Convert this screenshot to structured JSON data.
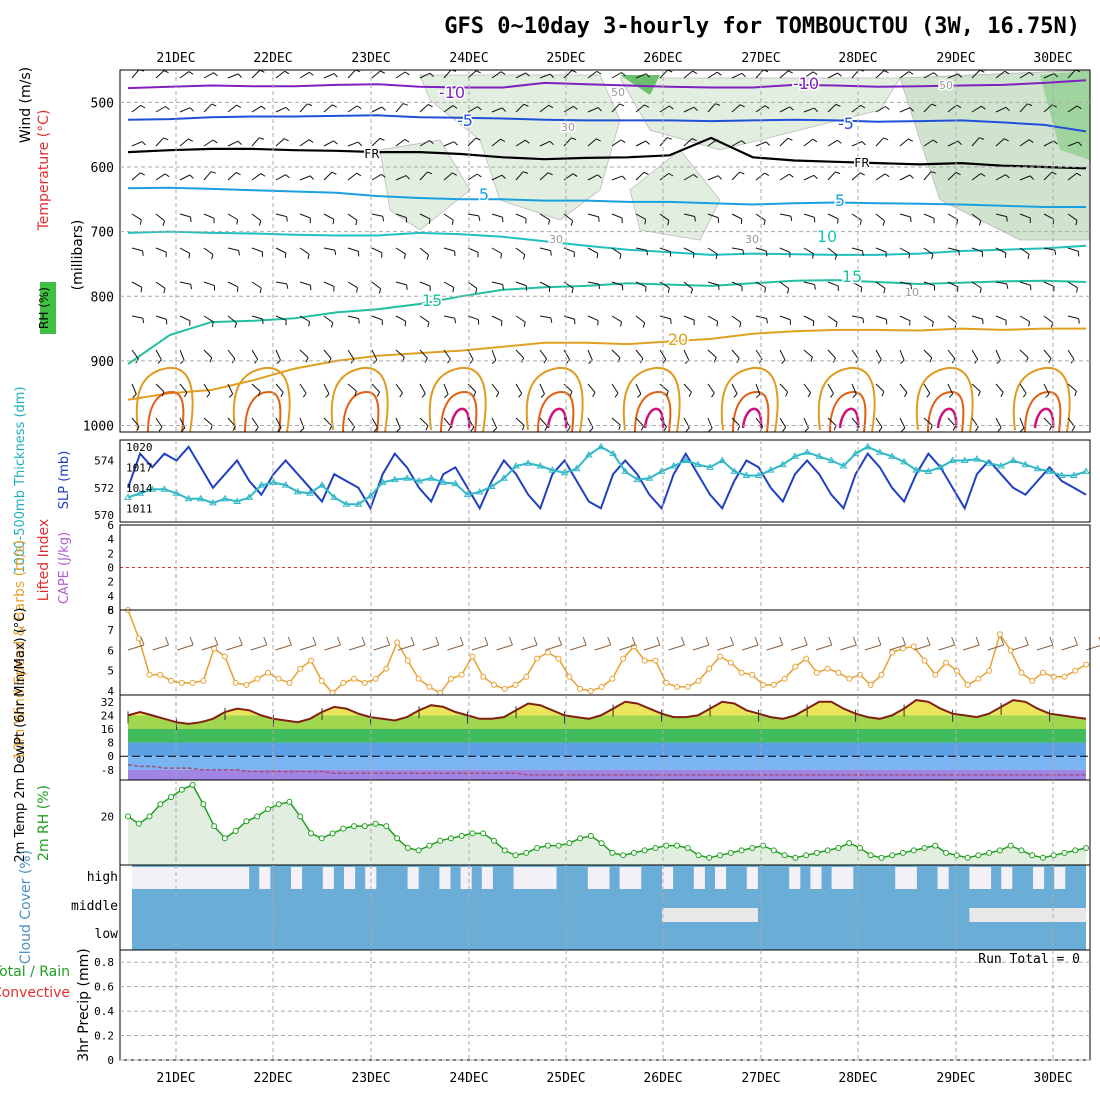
{
  "title": "GFS 0~10day 3-hourly for TOMBOUCTOU (3W, 16.75N)",
  "dates": [
    "21DEC",
    "22DEC",
    "23DEC",
    "24DEC",
    "25DEC",
    "26DEC",
    "27DEC",
    "28DEC",
    "29DEC",
    "30DEC"
  ],
  "colors": {
    "orange": "#e8a030",
    "cyan": "#30b8c8",
    "green": "#20a020",
    "blue": "#2040c0",
    "red": "#e03030",
    "purple": "#b060d0",
    "rh_green": "#40c040",
    "cloud": "#6aaed8",
    "grid": "#a0a0a0"
  },
  "chart_data": [
    {
      "type": "contour",
      "name": "upper-air",
      "labels": {
        "rh": "RH (%)",
        "temperature": "Temperature (°C)",
        "wind": "Wind (m/s)",
        "pressure": "(millibars)"
      },
      "yaxis_ticks": [
        "500",
        "600",
        "700",
        "800",
        "900",
        "1000"
      ],
      "ylim": [
        450,
        1010
      ],
      "contour_labels": [
        "-10",
        "-10",
        "-5",
        "-5",
        "FR",
        "FR",
        "5",
        "5",
        "10",
        "15",
        "15",
        "20",
        "30",
        "30",
        "30",
        "50",
        "50",
        "10"
      ],
      "isotherms": [
        {
          "label": "-10",
          "color": "#8020c0",
          "p": [
            478,
            476,
            474,
            475,
            475,
            473,
            472,
            476,
            477,
            477,
            470,
            472,
            474,
            476,
            477,
            477,
            473,
            474,
            476,
            475,
            474,
            473,
            470,
            466
          ]
        },
        {
          "label": "-5",
          "color": "#2050d8",
          "p": [
            527,
            526,
            523,
            522,
            522,
            521,
            520,
            523,
            524,
            525,
            527,
            528,
            528,
            528,
            529,
            528,
            527,
            528,
            530,
            529,
            528,
            531,
            535,
            545
          ]
        },
        {
          "label": "FR",
          "color": "#000000",
          "p": [
            577,
            574,
            572,
            572,
            574,
            575,
            577,
            577,
            580,
            585,
            588,
            586,
            585,
            582,
            555,
            585,
            590,
            592,
            594,
            596,
            594,
            598,
            600,
            602
          ]
        },
        {
          "label": "5",
          "color": "#1aa0e0",
          "p": [
            633,
            632,
            634,
            636,
            638,
            640,
            645,
            648,
            650,
            650,
            652,
            652,
            654,
            654,
            656,
            658,
            656,
            655,
            656,
            657,
            658,
            660,
            662,
            662
          ]
        },
        {
          "label": "10",
          "color": "#20c0c0",
          "p": [
            702,
            700,
            702,
            703,
            705,
            706,
            706,
            702,
            704,
            708,
            715,
            722,
            728,
            732,
            736,
            734,
            735,
            736,
            736,
            734,
            730,
            728,
            726,
            722
          ]
        },
        {
          "label": "15",
          "color": "#20c0a0",
          "p": [
            905,
            860,
            840,
            838,
            834,
            825,
            820,
            812,
            800,
            790,
            786,
            784,
            780,
            782,
            784,
            780,
            776,
            775,
            778,
            781,
            779,
            777,
            776,
            778
          ]
        },
        {
          "label": "20",
          "color": "#e0a020",
          "p": [
            960,
            950,
            945,
            930,
            912,
            900,
            892,
            888,
            884,
            878,
            872,
            872,
            874,
            870,
            866,
            858,
            854,
            852,
            852,
            853,
            850,
            852,
            850,
            850
          ]
        }
      ]
    },
    {
      "type": "line",
      "name": "slp-thickness",
      "ylabel_left": "1000-500mb Thickness (dm)",
      "ylabel_right": "SLP (mb)",
      "left_ticks": [
        "574",
        "572",
        "570"
      ],
      "right_ticks": [
        "1020",
        "1017",
        "1014",
        "1011"
      ],
      "series": [
        {
          "name": "SLP (mb)",
          "color": "#2040c0",
          "axis": "right",
          "ylim": [
            1009,
            1021
          ],
          "values": [
            1014,
            1019,
            1017,
            1019,
            1018,
            1020,
            1017,
            1014,
            1016,
            1018,
            1015,
            1013,
            1016,
            1018,
            1016,
            1014,
            1012,
            1016,
            1015,
            1014,
            1011,
            1016,
            1019,
            1017,
            1014,
            1012,
            1016,
            1017,
            1014,
            1011,
            1015,
            1018,
            1016,
            1013,
            1011,
            1016,
            1018,
            1015,
            1012,
            1011,
            1016,
            1018,
            1016,
            1013,
            1011,
            1016,
            1019,
            1016,
            1013,
            1011,
            1015,
            1018,
            1017,
            1014,
            1012,
            1016,
            1018,
            1016,
            1013,
            1011,
            1016,
            1019,
            1017,
            1014,
            1012,
            1016,
            1019,
            1017,
            1014,
            1011,
            1016,
            1018,
            1016,
            1014,
            1013,
            1015,
            1017,
            1015,
            1014,
            1013
          ]
        },
        {
          "name": "Thickness (dm)",
          "color": "#30b8c8",
          "axis": "left",
          "ylim": [
            569.5,
            575.5
          ],
          "values": [
            571.3,
            571.6,
            571.9,
            571.9,
            571.6,
            571.2,
            571.2,
            570.9,
            571.2,
            571.0,
            571.3,
            572.2,
            572.4,
            572.2,
            571.7,
            571.6,
            572.2,
            571.3,
            570.8,
            570.8,
            571.4,
            572.4,
            572.6,
            572.7,
            572.5,
            572.7,
            572.4,
            572.3,
            571.5,
            571.7,
            572.1,
            572.7,
            573.6,
            573.8,
            573.6,
            573.3,
            573.1,
            573.4,
            574.4,
            575.0,
            574.5,
            573.2,
            572.6,
            572.7,
            573.2,
            573.6,
            574.0,
            573.7,
            573.5,
            574.0,
            573.2,
            572.9,
            572.9,
            573.3,
            573.7,
            574.3,
            574.6,
            574.3,
            574.0,
            573.6,
            574.5,
            575.0,
            574.6,
            574.3,
            573.9,
            573.3,
            573.2,
            573.5,
            574.0,
            574.0,
            574.1,
            573.8,
            573.6,
            574.0,
            573.7,
            573.4,
            573.2,
            572.9,
            572.9,
            573.2
          ]
        }
      ]
    },
    {
      "type": "line",
      "name": "lifted-index-cape",
      "ylabel_left": "Lifted Index",
      "ylabel_right": "CAPE (J/kg)",
      "yticks": [
        "6",
        "4",
        "2",
        "0",
        "2",
        "4",
        "6"
      ],
      "ylim": [
        -6,
        6
      ],
      "series": []
    },
    {
      "type": "line",
      "name": "wind-10m",
      "ylabel": "10m Wind Speed & Barbs (m/s)",
      "yticks": [
        "8",
        "7",
        "6",
        "5",
        "4"
      ],
      "ylim": [
        3.8,
        8.0
      ],
      "series": [
        {
          "name": "10m Wind Speed",
          "color": "#e8a030",
          "values": [
            8.0,
            6.6,
            4.8,
            4.8,
            4.5,
            4.4,
            4.4,
            4.5,
            6.1,
            5.7,
            4.4,
            4.3,
            4.6,
            4.9,
            4.6,
            4.4,
            5.1,
            5.5,
            4.5,
            3.9,
            4.4,
            4.6,
            4.4,
            4.6,
            5.1,
            6.4,
            5.5,
            4.6,
            4.2,
            3.9,
            4.6,
            4.8,
            5.7,
            4.7,
            4.3,
            4.1,
            4.3,
            4.7,
            5.6,
            5.9,
            5.6,
            4.7,
            4.1,
            4.0,
            4.2,
            4.6,
            5.6,
            6.2,
            5.5,
            5.5,
            4.4,
            4.2,
            4.2,
            4.5,
            5.1,
            5.7,
            5.4,
            4.9,
            4.8,
            4.3,
            4.3,
            4.6,
            5.2,
            5.6,
            4.9,
            5.1,
            4.9,
            4.6,
            4.8,
            4.3,
            4.8,
            5.9,
            6.1,
            6.2,
            5.5,
            4.8,
            5.4,
            5.0,
            4.3,
            4.6,
            5.0,
            6.8,
            6.0,
            4.9,
            4.5,
            4.9,
            4.7,
            4.7,
            5.0,
            5.3
          ]
        }
      ]
    },
    {
      "type": "area",
      "name": "temp-2m",
      "ylabel": "2m Temp 2m DewPt (6hr Min/Max) (°C)",
      "yticks": [
        "32",
        "24",
        "16",
        "8",
        "0",
        "-8"
      ],
      "ylim": [
        -14,
        36
      ],
      "series": [
        {
          "name": "2m Temp",
          "color": "#802010",
          "values": [
            24,
            26,
            24,
            22,
            20,
            19,
            20,
            22,
            26,
            28,
            27,
            24,
            22,
            21,
            20,
            22,
            26,
            29,
            28,
            25,
            23,
            22,
            21,
            23,
            27,
            30,
            29,
            26,
            24,
            22,
            22,
            23,
            27,
            31,
            30,
            27,
            24,
            23,
            22,
            24,
            28,
            32,
            31,
            28,
            25,
            23,
            23,
            24,
            28,
            32,
            31,
            27,
            25,
            23,
            22,
            24,
            28,
            32,
            32,
            28,
            25,
            23,
            22,
            24,
            28,
            33,
            32,
            28,
            25,
            24,
            23,
            25,
            29,
            33,
            32,
            28,
            25,
            24,
            23,
            22
          ]
        },
        {
          "name": "2m DewPt",
          "color": "#a05080",
          "values": [
            -5,
            -6,
            -6,
            -7,
            -7,
            -7,
            -8,
            -8,
            -8,
            -8,
            -9,
            -9,
            -9,
            -9,
            -9,
            -9,
            -9,
            -10,
            -10,
            -10,
            -10,
            -10,
            -10,
            -10,
            -10,
            -10,
            -10,
            -10,
            -10,
            -10,
            -10,
            -10,
            -10,
            -11,
            -11,
            -11,
            -11,
            -11,
            -11,
            -11,
            -11,
            -11,
            -11,
            -11,
            -11,
            -11,
            -11,
            -11,
            -11,
            -11,
            -11,
            -11,
            -11,
            -11,
            -11,
            -11,
            -11,
            -11,
            -11,
            -11,
            -11,
            -11,
            -11,
            -11,
            -11,
            -11,
            -11,
            -11,
            -11,
            -11,
            -11,
            -11,
            -11,
            -11,
            -11,
            -11,
            -11,
            -11,
            -11,
            -11
          ]
        }
      ]
    },
    {
      "type": "area",
      "name": "rh-2m",
      "ylabel": "2m RH (%)",
      "yticks": [
        "20"
      ],
      "ylim": [
        0,
        35
      ],
      "series": [
        {
          "name": "2m RH",
          "color": "#20a020",
          "values": [
            20,
            17,
            20,
            25,
            28,
            31,
            33,
            25,
            16,
            11,
            14,
            18,
            20,
            23,
            25,
            26,
            20,
            13,
            11,
            13,
            15,
            16,
            16,
            17,
            16,
            11,
            7,
            6,
            8,
            10,
            11,
            12,
            13,
            13,
            10,
            6,
            4,
            5,
            7,
            8,
            8,
            9,
            11,
            12,
            9,
            5,
            4,
            5,
            6,
            7,
            8,
            8,
            7,
            4,
            3,
            4,
            5,
            6,
            7,
            8,
            6,
            4,
            3,
            4,
            5,
            6,
            7,
            9,
            7,
            4,
            3,
            4,
            5,
            6,
            7,
            8,
            5,
            4,
            3,
            4,
            5,
            6,
            8,
            6,
            4,
            3,
            4,
            5,
            6,
            7
          ]
        }
      ]
    },
    {
      "type": "bar",
      "name": "cloud-cover",
      "ylabel": "Cloud Cover (%)",
      "levels": [
        "high",
        "middle",
        "low"
      ],
      "high_clear": [
        1,
        1,
        1,
        1,
        1,
        1,
        1,
        1,
        1,
        1,
        1,
        0,
        1,
        0,
        0,
        1,
        0,
        0,
        1,
        0,
        1,
        0,
        1,
        0,
        0,
        0,
        1,
        0,
        0,
        1,
        0,
        1,
        0,
        1,
        0,
        0,
        1,
        1,
        1,
        1,
        0,
        0,
        0,
        1,
        1,
        0,
        1,
        1,
        0,
        0,
        1,
        0,
        0,
        1,
        0,
        1,
        0,
        0,
        1,
        0,
        0,
        0,
        1,
        0,
        1,
        0,
        1,
        1,
        0,
        0,
        0,
        0,
        1,
        1,
        0,
        0,
        1,
        0,
        0,
        1,
        1,
        0,
        1,
        0,
        0,
        1,
        0,
        1,
        0,
        0
      ],
      "middle_cloud": [
        0,
        0,
        0,
        0,
        0,
        0,
        0,
        0,
        0,
        0,
        0,
        0,
        0,
        0,
        0,
        0,
        0,
        0,
        0,
        0,
        0,
        0,
        0,
        0,
        0,
        0,
        0,
        0,
        0,
        0,
        0,
        0,
        0,
        0,
        0,
        0,
        0,
        0,
        0,
        0,
        0,
        0,
        0,
        0,
        0,
        0,
        0,
        0,
        0,
        0,
        1,
        1,
        1,
        1,
        1,
        1,
        1,
        1,
        1,
        0,
        0,
        0,
        0,
        0,
        0,
        0,
        0,
        0,
        0,
        0,
        0,
        0,
        0,
        0,
        0,
        0,
        0,
        0,
        0,
        1,
        1,
        1,
        1,
        1,
        1,
        1,
        1,
        1,
        1,
        1
      ]
    },
    {
      "type": "bar",
      "name": "precip-3hr",
      "ylabel_1": "Total / Rain",
      "ylabel_2": "Convective",
      "ylabel_3": "3hr Precip (mm)",
      "yticks": [
        "0.8",
        "0.6",
        "0.4",
        "0.2",
        "0"
      ],
      "ylim": [
        0,
        0.9
      ],
      "run_total": "Run Total = 0",
      "values": []
    }
  ]
}
